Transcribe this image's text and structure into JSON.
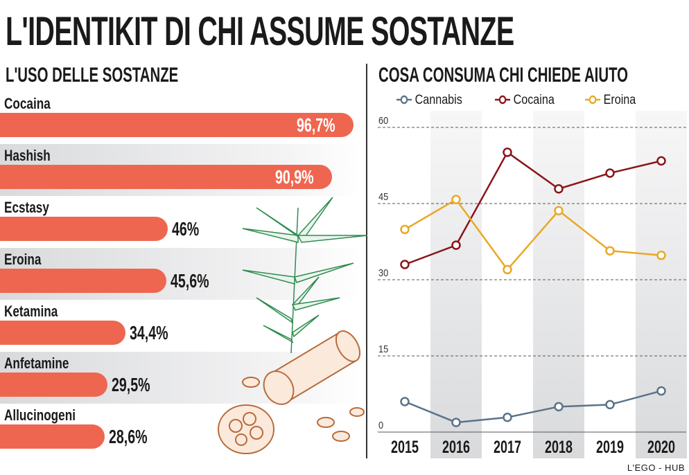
{
  "title": "L'IDENTIKIT DI CHI ASSUME SOSTANZE",
  "footer": "L'EGO - HUB",
  "chart_data": [
    {
      "type": "bar",
      "title": "L'USO DELLE SOSTANZE",
      "orientation": "horizontal",
      "categories": [
        "Cocaina",
        "Hashish",
        "Ecstasy",
        "Eroina",
        "Ketamina",
        "Anfetamine",
        "Allucinogeni"
      ],
      "values": [
        96.7,
        90.9,
        46,
        45.6,
        34.4,
        29.5,
        28.6
      ],
      "labels": [
        "96,7%",
        "90,9%",
        "46%",
        "45,6%",
        "34,4%",
        "29,5%",
        "28,6%"
      ],
      "color": "#ef6650"
    },
    {
      "type": "line",
      "title": "COSA CONSUMA CHI CHIEDE AIUTO",
      "x": [
        "2015",
        "2016",
        "2017",
        "2018",
        "2019",
        "2020"
      ],
      "ylim": [
        0,
        60
      ],
      "yticks": [
        "0",
        "15",
        "30",
        "45",
        "60"
      ],
      "grid": true,
      "legend": "top",
      "series": [
        {
          "name": "Cannabis",
          "color": "#5a7389",
          "values": [
            6.0,
            1.9,
            2.9,
            5.0,
            5.4,
            8.1
          ]
        },
        {
          "name": "Cocaina",
          "color": "#8b1418",
          "values": [
            33.0,
            36.8,
            55.1,
            47.9,
            51.0,
            53.4
          ]
        },
        {
          "name": "Eroina",
          "color": "#e9a825",
          "values": [
            39.9,
            45.8,
            32.0,
            43.6,
            35.7,
            34.8
          ]
        }
      ]
    }
  ]
}
